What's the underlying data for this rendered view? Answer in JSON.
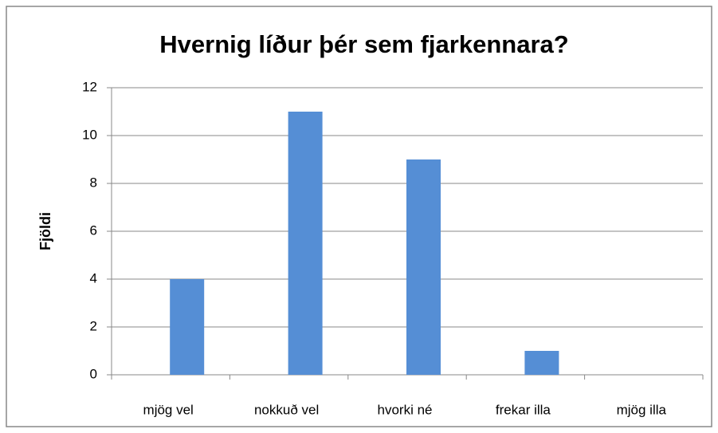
{
  "chart_data": {
    "type": "bar",
    "title": "Hvernig líður þér sem fjarkennara?",
    "y_label": "Fjöldi",
    "categories": [
      "mjög vel",
      "nokkuð vel",
      "hvorki né",
      "frekar illa",
      "mjög illa"
    ],
    "values": [
      4,
      11,
      9,
      1,
      0
    ],
    "color": "#558ed5",
    "ylim": [
      0,
      12
    ],
    "yticks": [
      0,
      2,
      4,
      6,
      8,
      10,
      12
    ],
    "grid": true
  }
}
